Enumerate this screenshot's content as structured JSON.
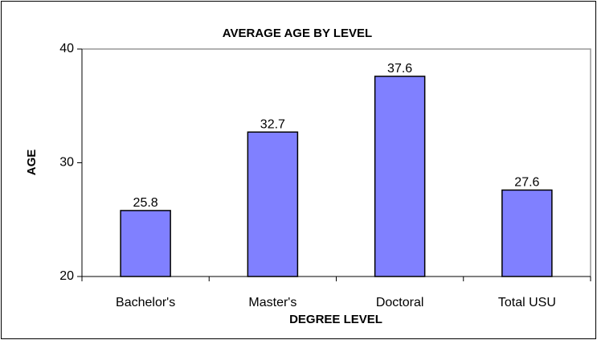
{
  "chart_data": {
    "type": "bar",
    "title": "AVERAGE AGE BY LEVEL",
    "x_label": "DEGREE LEVEL",
    "y_label": "AGE",
    "categories": [
      "Bachelor's",
      "Master's",
      "Doctoral",
      "Total USU"
    ],
    "values": [
      25.8,
      32.7,
      37.6,
      27.6
    ],
    "color": "#8080ff",
    "ylim": [
      20,
      40
    ],
    "yticks": [
      20,
      30,
      40
    ],
    "grid": false
  }
}
